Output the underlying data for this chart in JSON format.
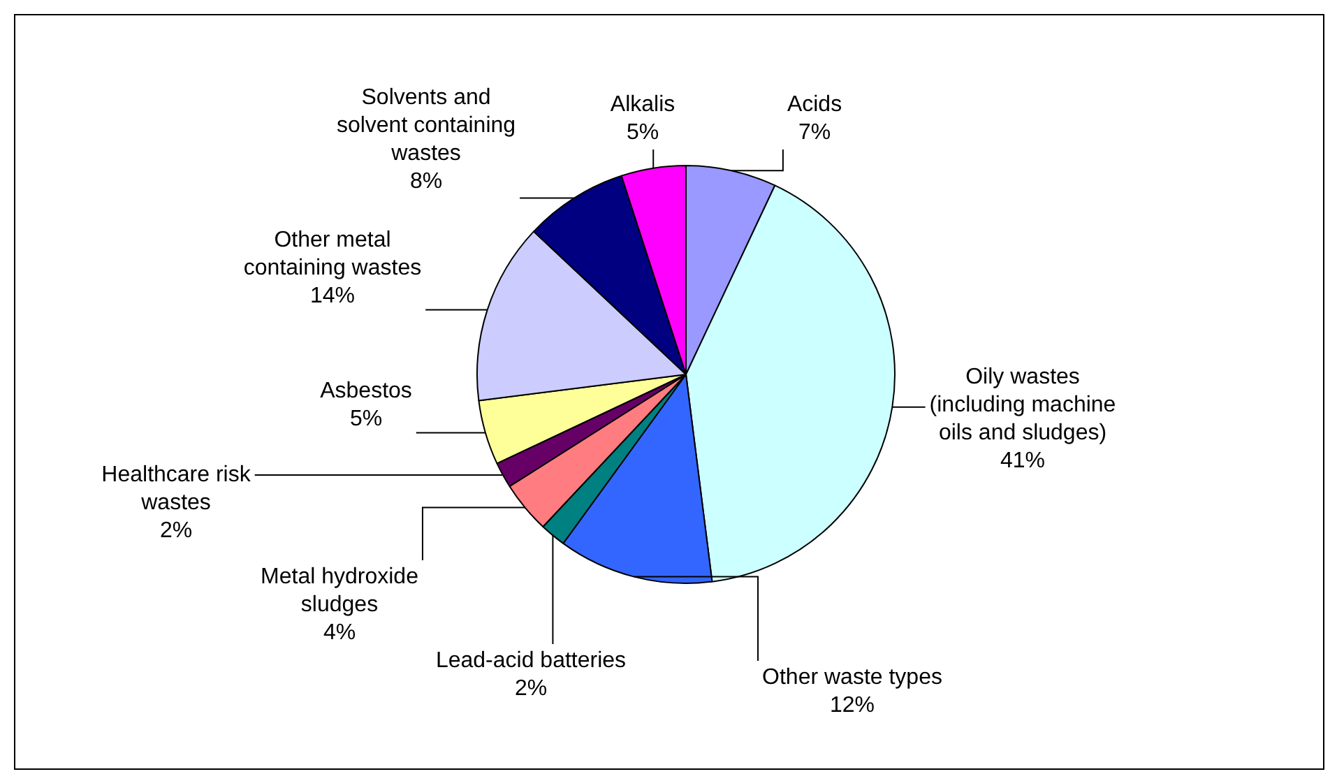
{
  "chart_data": {
    "type": "pie",
    "categories": [
      "Acids",
      "Oily wastes (including machine oils and sludges)",
      "Other waste types",
      "Lead-acid batteries",
      "Metal hydroxide sludges",
      "Healthcare risk wastes",
      "Asbestos",
      "Other metal containing wastes",
      "Solvents and solvent containing wastes",
      "Alkalis"
    ],
    "values": [
      7,
      41,
      12,
      2,
      4,
      2,
      5,
      14,
      8,
      5
    ],
    "colors": [
      "#9999ff",
      "#ccffff",
      "#3366ff",
      "#008080",
      "#ff7c80",
      "#660066",
      "#ffff99",
      "#ccccff",
      "#000080",
      "#ff00ff"
    ],
    "value_labels": [
      "7%",
      "41%",
      "12%",
      "2%",
      "4%",
      "2%",
      "5%",
      "14%",
      "8%",
      "5%"
    ],
    "legend": false
  }
}
